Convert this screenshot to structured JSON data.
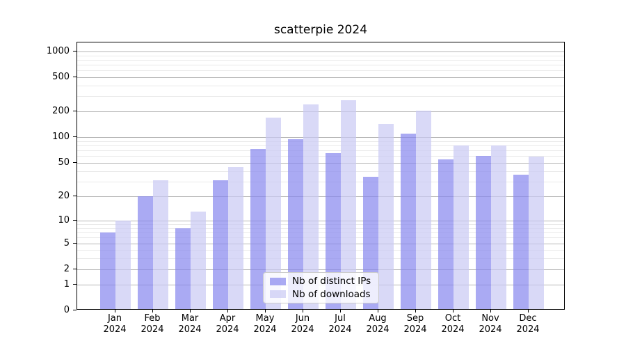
{
  "title": "scatterpie 2024",
  "chart_data": {
    "type": "bar",
    "title": "scatterpie 2024",
    "categories": [
      {
        "month": "Jan",
        "year": "2024"
      },
      {
        "month": "Feb",
        "year": "2024"
      },
      {
        "month": "Mar",
        "year": "2024"
      },
      {
        "month": "Apr",
        "year": "2024"
      },
      {
        "month": "May",
        "year": "2024"
      },
      {
        "month": "Jun",
        "year": "2024"
      },
      {
        "month": "Jul",
        "year": "2024"
      },
      {
        "month": "Aug",
        "year": "2024"
      },
      {
        "month": "Sep",
        "year": "2024"
      },
      {
        "month": "Oct",
        "year": "2024"
      },
      {
        "month": "Nov",
        "year": "2024"
      },
      {
        "month": "Dec",
        "year": "2024"
      }
    ],
    "series": [
      {
        "name": "Nb of distinct IPs",
        "color": "#8686ee",
        "values": [
          7,
          20,
          8,
          31,
          73,
          94,
          65,
          34,
          110,
          55,
          60,
          36
        ]
      },
      {
        "name": "Nb of downloads",
        "color": "#c9c9f4",
        "values": [
          10,
          31,
          13,
          45,
          170,
          240,
          270,
          143,
          205,
          80,
          80,
          59
        ]
      }
    ],
    "y_axis": {
      "scale": "symlog",
      "ticks": [
        0,
        1,
        2,
        5,
        10,
        20,
        50,
        100,
        200,
        500,
        1000
      ],
      "tick_labels": [
        "0",
        "1",
        "2",
        "5",
        "10",
        "20",
        "50",
        "100",
        "200",
        "500",
        "1000"
      ],
      "minor_ticks": [
        3,
        4,
        6,
        7,
        8,
        9,
        30,
        40,
        60,
        70,
        80,
        90,
        300,
        400,
        600,
        700,
        800,
        900
      ],
      "ylim": [
        0,
        1300
      ]
    },
    "xlabel": "",
    "ylabel": "",
    "grid": "both",
    "legend_position": "lower center"
  }
}
